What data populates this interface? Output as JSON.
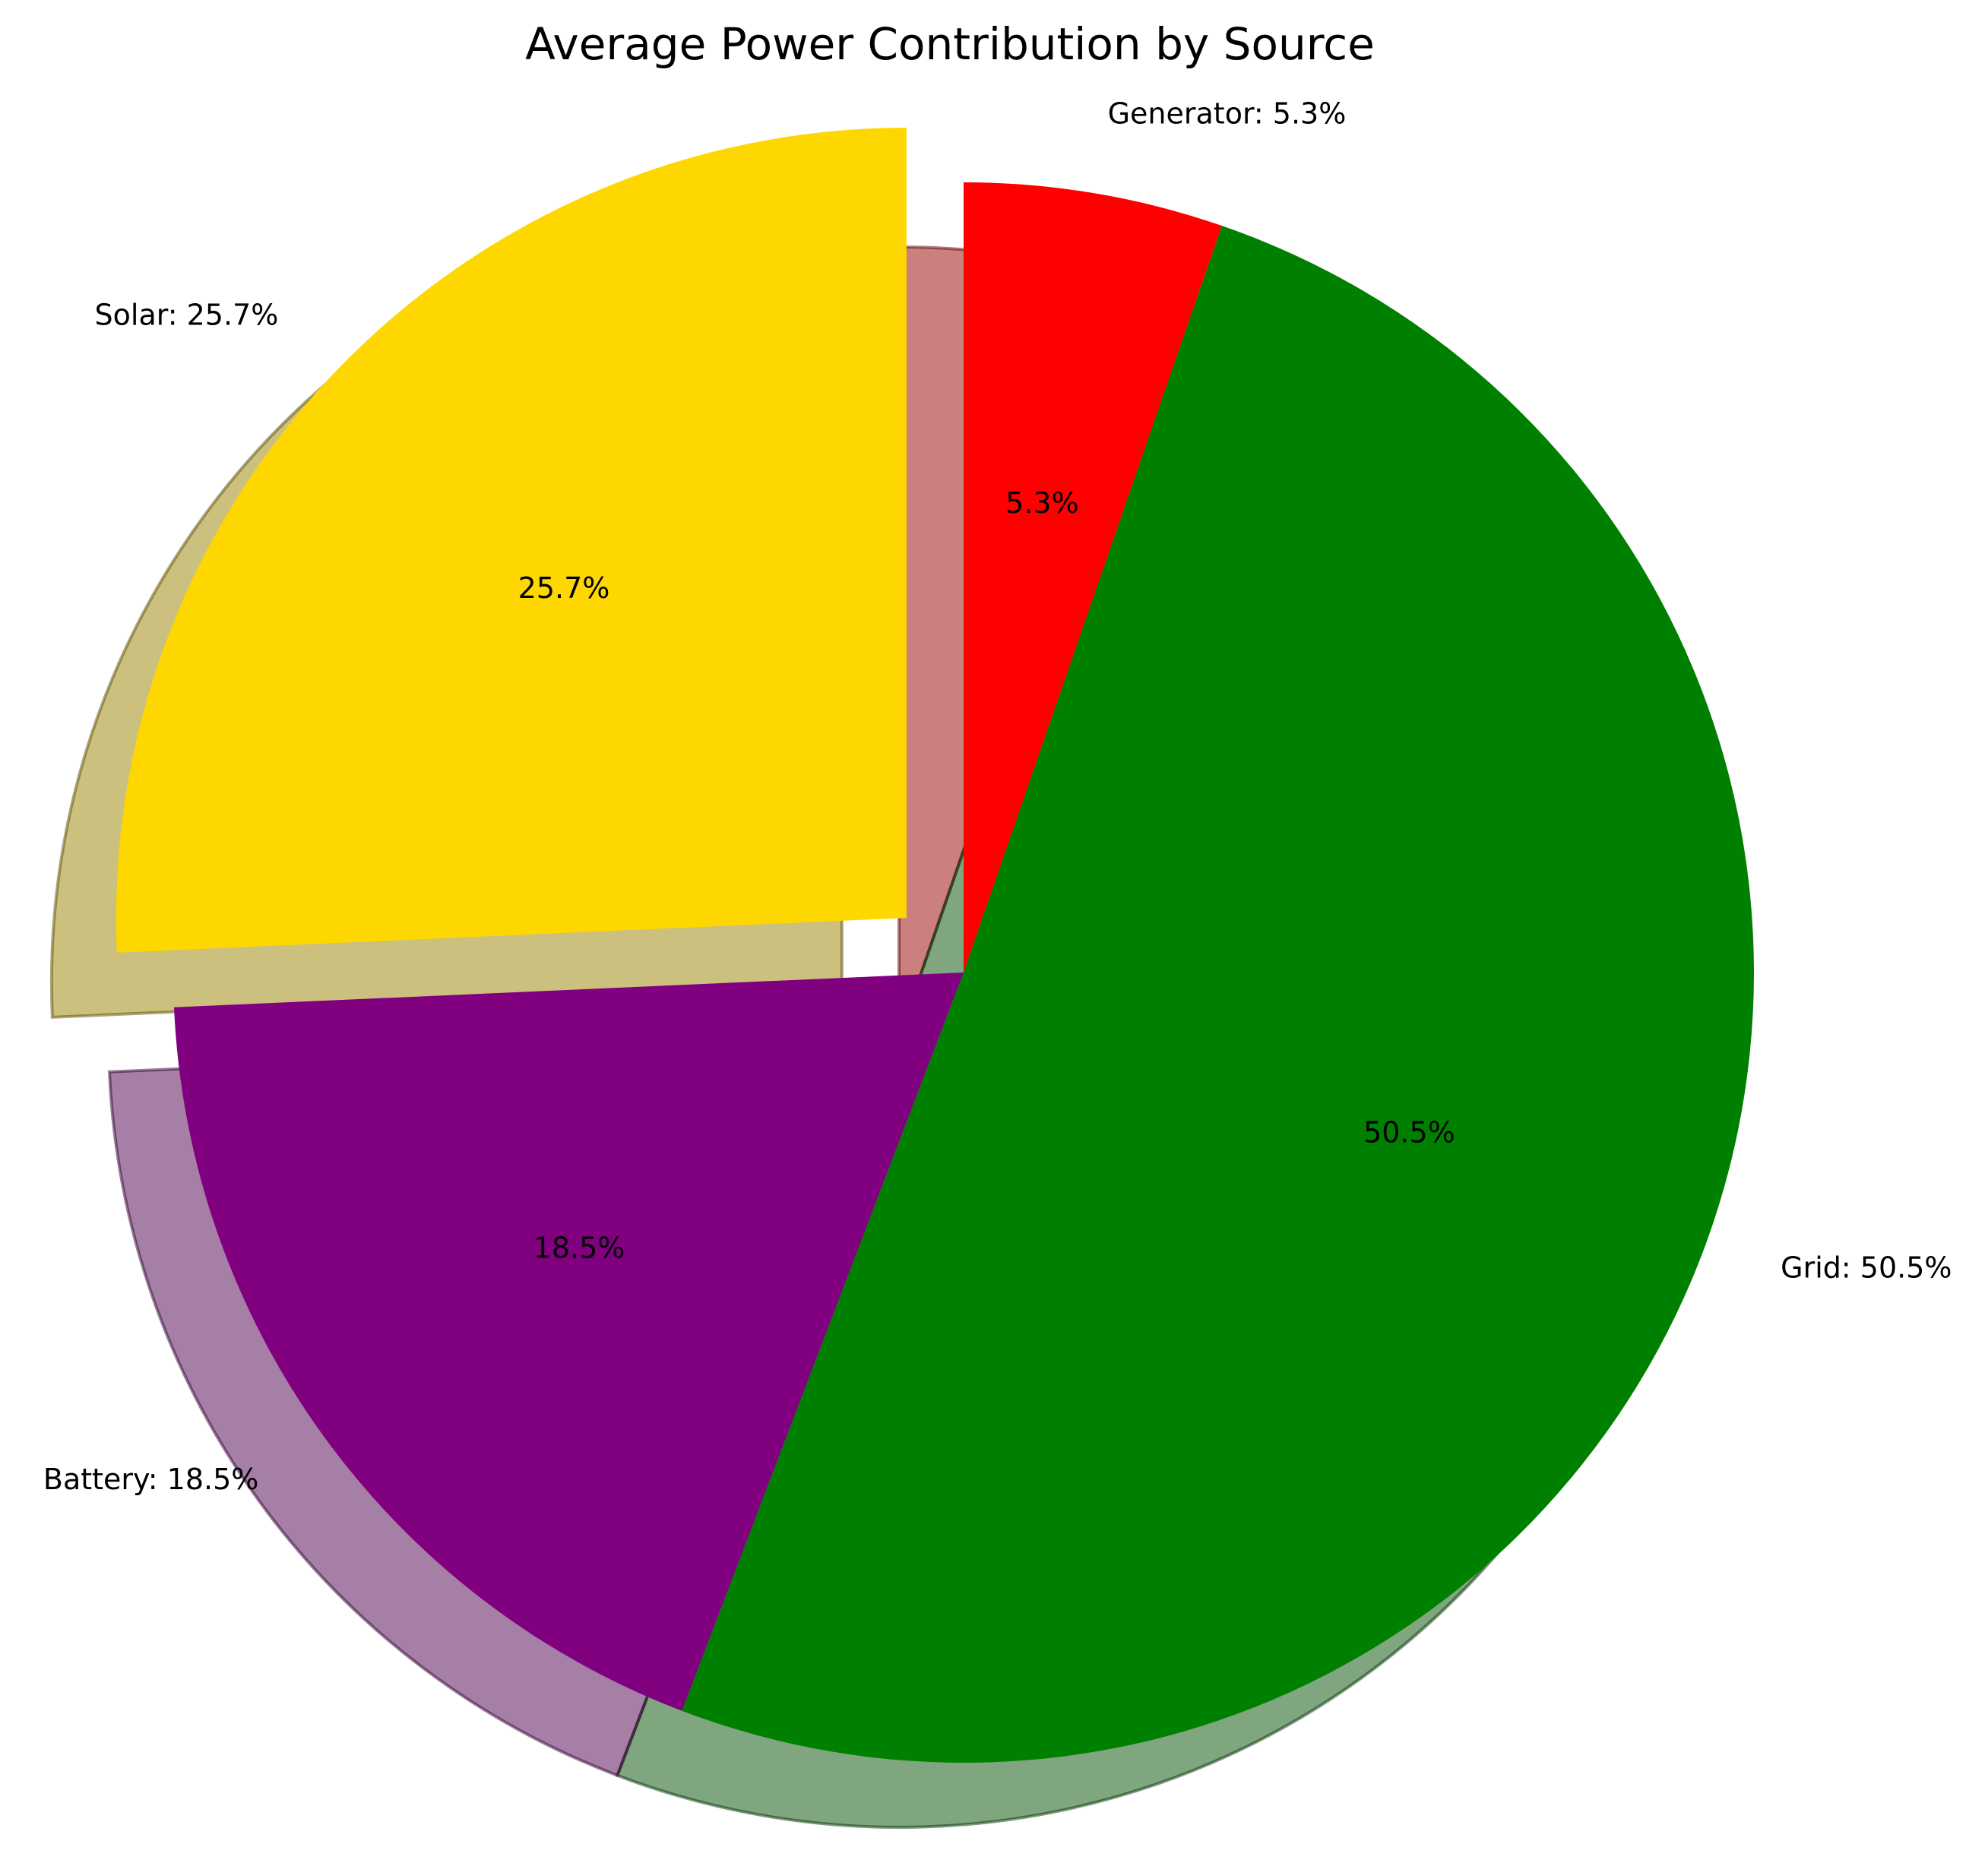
{
  "chart_data": {
    "type": "pie",
    "title": "Average Power Contribution by Source",
    "start_angle_deg": 90,
    "direction": "clockwise",
    "shadow": true,
    "slices": [
      {
        "name": "Generator",
        "value": 5.3,
        "label": "Generator: 5.3%",
        "pct_label": "5.3%",
        "color": "#ff0000",
        "exploded": false
      },
      {
        "name": "Grid",
        "value": 50.5,
        "label": "Grid: 50.5%",
        "pct_label": "50.5%",
        "color": "#008000",
        "exploded": false
      },
      {
        "name": "Battery",
        "value": 18.5,
        "label": "Battery: 18.5%",
        "pct_label": "18.5%",
        "color": "#800080",
        "exploded": false
      },
      {
        "name": "Solar",
        "value": 25.7,
        "label": "Solar: 25.7%",
        "pct_label": "25.7%",
        "color": "#ffd700",
        "exploded": true
      }
    ]
  }
}
